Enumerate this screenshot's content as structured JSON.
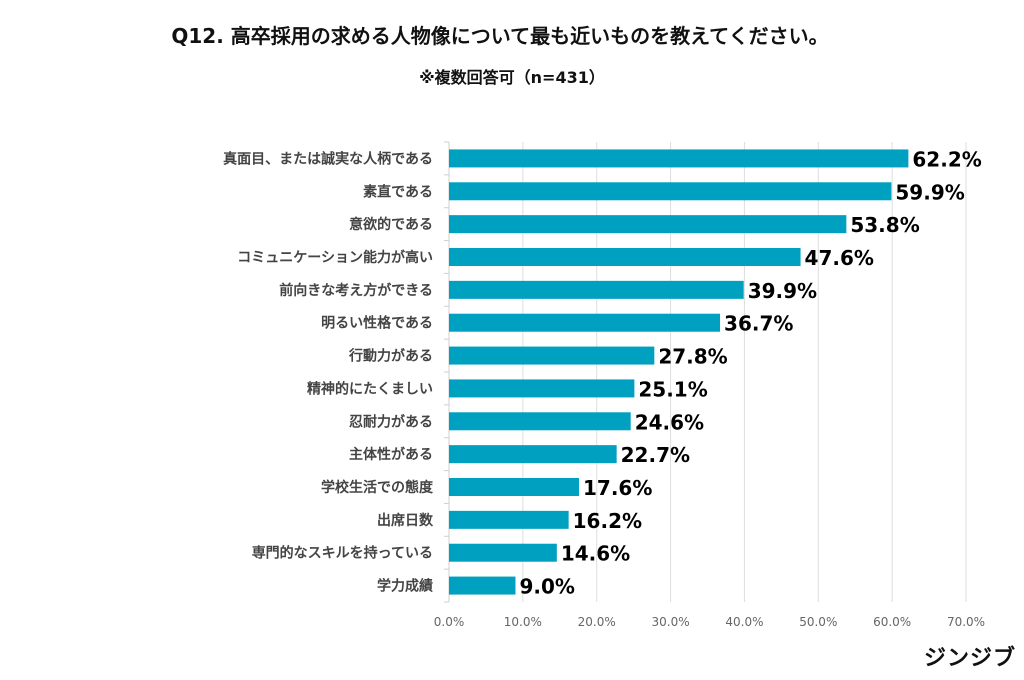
{
  "chart_data": {
    "type": "bar",
    "orientation": "horizontal",
    "title": "Q12.  高卒採用の求める人物像について最も近いものを教えてください。",
    "subtitle": "※複数回答可（n=431）",
    "categories": [
      "真面目、または誠実な人柄である",
      "素直である",
      "意欲的である",
      "コミュニケーション能力が高い",
      "前向きな考え方ができる",
      "明るい性格である",
      "行動力がある",
      "精神的にたくましい",
      "忍耐力がある",
      "主体性がある",
      "学校生活での態度",
      "出席日数",
      "専門的なスキルを持っている",
      "学力成績"
    ],
    "values": [
      62.2,
      59.9,
      53.8,
      47.6,
      39.9,
      36.7,
      27.8,
      25.1,
      24.6,
      22.7,
      17.6,
      16.2,
      14.6,
      9.0
    ],
    "data_labels": [
      "62.2%",
      "59.9%",
      "53.8%",
      "47.6%",
      "39.9%",
      "36.7%",
      "27.8%",
      "25.1%",
      "24.6%",
      "22.7%",
      "17.6%",
      "16.2%",
      "14.6%",
      "9.0%"
    ],
    "xlim": [
      0,
      70
    ],
    "xticks": [
      0,
      10,
      20,
      30,
      40,
      50,
      60,
      70
    ],
    "xtick_labels": [
      "0.0%",
      "10.0%",
      "20.0%",
      "30.0%",
      "40.0%",
      "50.0%",
      "60.0%",
      "70.0%"
    ],
    "xlabel": "",
    "ylabel": "",
    "grid": true,
    "bar_color": "#00a0c0",
    "legend": "none"
  },
  "brand": "ジンジブ"
}
